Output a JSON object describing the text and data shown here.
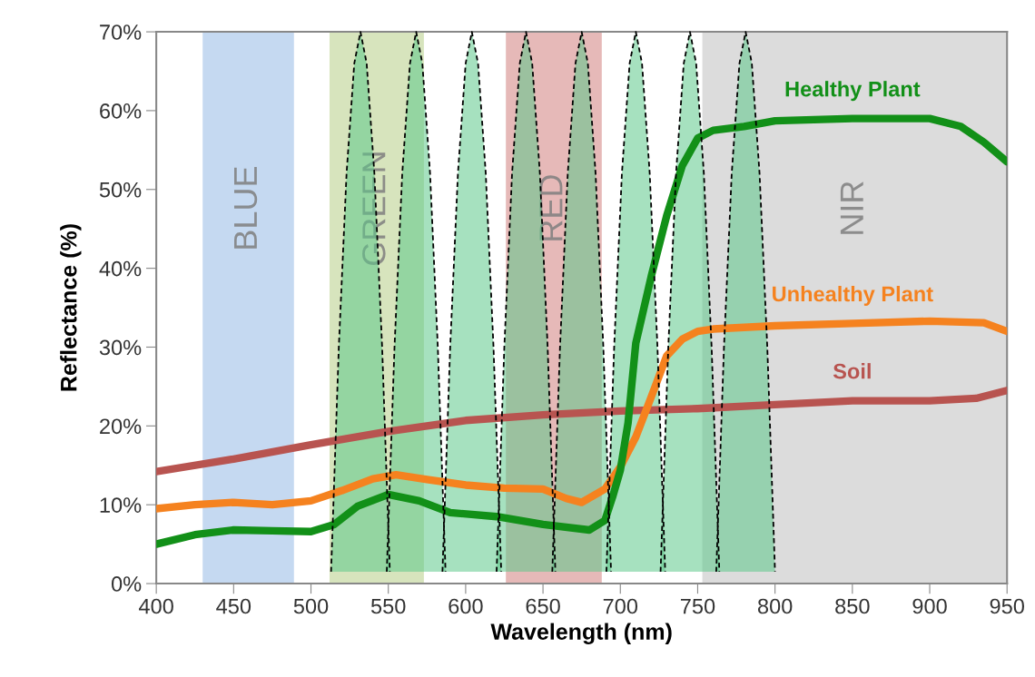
{
  "chart_data": {
    "type": "line",
    "xlabel": "Wavelength (nm)",
    "ylabel": "Reflectance (%)",
    "xlim": [
      400,
      950
    ],
    "xticks": [
      400,
      450,
      500,
      550,
      600,
      650,
      700,
      750,
      800,
      850,
      900,
      950
    ],
    "ylim": [
      0,
      70
    ],
    "yticks": [
      {
        "value": 0,
        "label": "0%"
      },
      {
        "value": 10,
        "label": "10%"
      },
      {
        "value": 20,
        "label": "20%"
      },
      {
        "value": 30,
        "label": "30%"
      },
      {
        "value": 40,
        "label": "40%"
      },
      {
        "value": 50,
        "label": "50%"
      },
      {
        "value": 60,
        "label": "60%"
      },
      {
        "value": 70,
        "label": "70%"
      }
    ],
    "grid": false,
    "legend": false,
    "marker": "none",
    "bands": [
      {
        "axis": "x",
        "from": 430,
        "to": 489,
        "label": "BLUE",
        "color": "#c5d9f1"
      },
      {
        "axis": "x",
        "from": 512,
        "to": 573,
        "label": "GREEN",
        "color": "#d7e4bd"
      },
      {
        "axis": "x",
        "from": 626,
        "to": 688,
        "label": "RED",
        "color": "#e6b9b8"
      },
      {
        "axis": "x",
        "from": 753,
        "to": 950,
        "label": "NIR",
        "color": "#dcdcdc"
      }
    ],
    "series": [
      {
        "type": "area",
        "color": "#5cc88a",
        "line_style": "dashed",
        "x": [
          513,
          518,
          523,
          528,
          532,
          536,
          541,
          546,
          551
        ],
        "values": [
          1.5,
          30,
          52,
          66,
          70,
          66,
          52,
          30,
          1.5
        ]
      },
      {
        "type": "area",
        "color": "#5cc88a",
        "line_style": "dashed",
        "x": [
          549,
          554,
          559,
          564,
          568,
          572,
          577,
          582,
          587
        ],
        "values": [
          1.5,
          30,
          52,
          66,
          70,
          66,
          52,
          30,
          1.5
        ]
      },
      {
        "type": "area",
        "color": "#5cc88a",
        "line_style": "dashed",
        "x": [
          585,
          590,
          595,
          600,
          604,
          608,
          613,
          618,
          623
        ],
        "values": [
          1.5,
          30,
          52,
          66,
          70,
          66,
          52,
          30,
          1.5
        ]
      },
      {
        "type": "area",
        "color": "#5cc88a",
        "line_style": "dashed",
        "x": [
          620,
          625,
          630,
          635,
          639,
          643,
          648,
          653,
          658
        ],
        "values": [
          1.5,
          30,
          52,
          66,
          70,
          66,
          52,
          30,
          1.5
        ]
      },
      {
        "type": "area",
        "color": "#5cc88a",
        "line_style": "dashed",
        "x": [
          656,
          661,
          666,
          671,
          675,
          679,
          684,
          689,
          694
        ],
        "values": [
          1.5,
          30,
          52,
          66,
          70,
          66,
          52,
          30,
          1.5
        ]
      },
      {
        "type": "area",
        "color": "#5cc88a",
        "line_style": "dashed",
        "x": [
          691,
          696,
          701,
          706,
          710,
          714,
          719,
          724,
          729
        ],
        "values": [
          1.5,
          30,
          52,
          66,
          70,
          66,
          52,
          30,
          1.5
        ]
      },
      {
        "type": "area",
        "color": "#5cc88a",
        "line_style": "dashed",
        "x": [
          726,
          731,
          736,
          741,
          745,
          749,
          754,
          759,
          764
        ],
        "values": [
          1.5,
          30,
          52,
          66,
          70,
          66,
          52,
          30,
          1.5
        ]
      },
      {
        "type": "area",
        "color": "#5cc88a",
        "line_style": "dashed",
        "x": [
          762,
          767,
          772,
          777,
          781,
          785,
          790,
          795,
          800
        ],
        "values": [
          1.5,
          30,
          52,
          66,
          70,
          66,
          52,
          30,
          1.5
        ]
      },
      {
        "name": "Soil",
        "color": "#b85450",
        "x": [
          400,
          450,
          500,
          550,
          600,
          650,
          700,
          750,
          800,
          850,
          900,
          930,
          950
        ],
        "values": [
          14.2,
          15.8,
          17.6,
          19.3,
          20.7,
          21.4,
          21.9,
          22.2,
          22.7,
          23.2,
          23.2,
          23.5,
          24.5
        ]
      },
      {
        "name": "Unhealthy Plant",
        "color": "#f5821f",
        "x": [
          400,
          425,
          450,
          475,
          500,
          520,
          540,
          555,
          575,
          600,
          625,
          650,
          665,
          675,
          690,
          700,
          710,
          720,
          730,
          740,
          750,
          760,
          800,
          850,
          900,
          935,
          950
        ],
        "values": [
          9.5,
          10,
          10.3,
          10,
          10.5,
          11.8,
          13.3,
          13.8,
          13.2,
          12.5,
          12.1,
          12,
          10.8,
          10.3,
          12,
          14.8,
          18.6,
          23.7,
          28.9,
          31,
          32,
          32.3,
          32.7,
          33,
          33.3,
          33.1,
          32
        ]
      },
      {
        "name": "Healthy Plant",
        "color": "#129018",
        "x": [
          400,
          425,
          450,
          475,
          500,
          515,
          530,
          550,
          570,
          590,
          620,
          650,
          680,
          690,
          695,
          700,
          705,
          710,
          720,
          730,
          740,
          750,
          760,
          780,
          800,
          850,
          900,
          920,
          935,
          950
        ],
        "values": [
          5,
          6.2,
          6.8,
          6.7,
          6.6,
          7.5,
          9.8,
          11.3,
          10.5,
          9,
          8.5,
          7.5,
          6.8,
          8,
          11,
          14.4,
          20.4,
          30.5,
          39,
          46.7,
          53,
          56.5,
          57.5,
          58,
          58.7,
          59,
          59,
          58,
          56,
          53.5
        ]
      }
    ]
  }
}
